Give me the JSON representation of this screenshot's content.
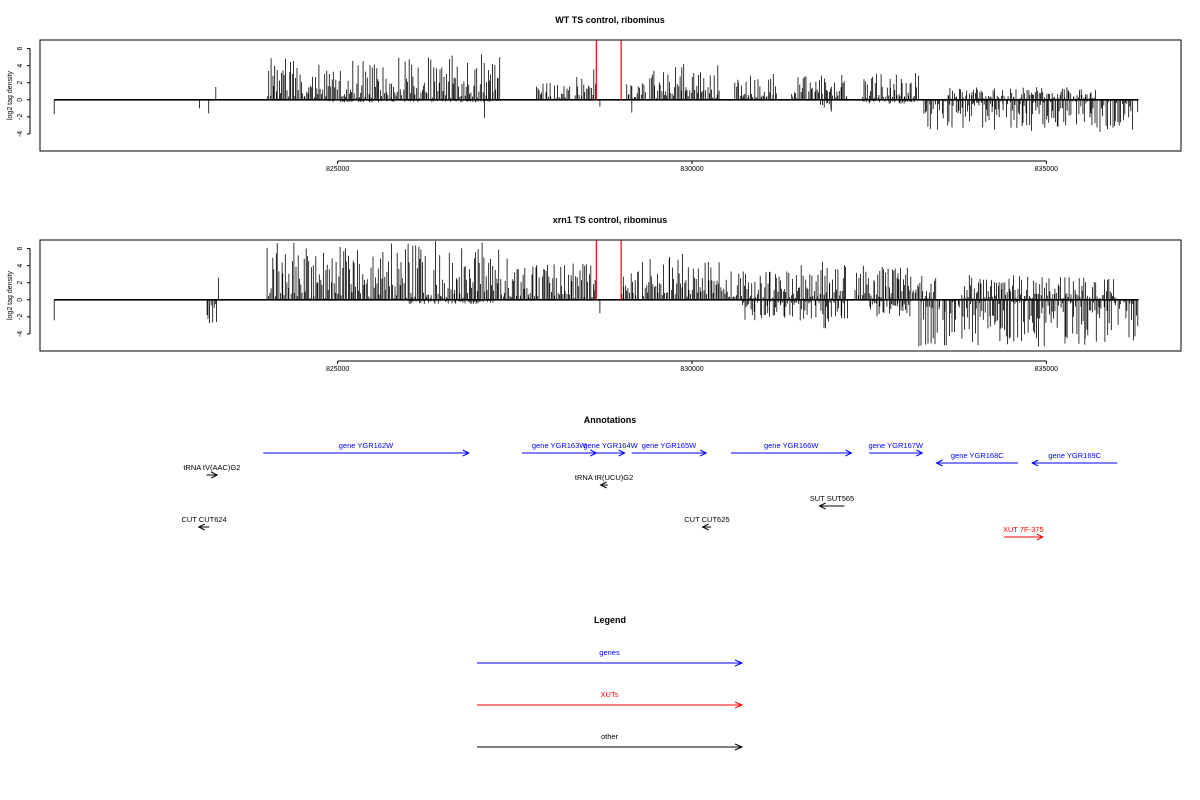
{
  "chart_data": [
    {
      "type": "bar",
      "title": "WT TS control, ribominus",
      "xlabel": "",
      "ylabel": "log2 tag density",
      "xlim": [
        820800,
        836900
      ],
      "ylim": [
        -6,
        7
      ],
      "yticks": [
        -4,
        -2,
        0,
        2,
        4,
        6
      ],
      "xticks": [
        825000,
        830000,
        835000
      ],
      "xtick_labels": [
        "825000",
        "830000",
        "835000"
      ],
      "baseline_x": [
        821000,
        836300
      ],
      "highlight_positions": [
        828650,
        829000
      ],
      "highlight_color": "#ff0000",
      "segments": [
        {
          "x_start": 821000,
          "x_end": 821000,
          "min": -1.7,
          "max": 0
        },
        {
          "x_start": 823050,
          "x_end": 823050,
          "min": -1.0,
          "max": 0
        },
        {
          "x_start": 823180,
          "x_end": 823180,
          "min": -1.6,
          "max": 0
        },
        {
          "x_start": 823280,
          "x_end": 823280,
          "min": 0,
          "max": 1.5
        },
        {
          "x_start": 824000,
          "x_end": 827300,
          "min": 0,
          "max": 5.5
        },
        {
          "x_start": 824800,
          "x_end": 827300,
          "min": -0.3,
          "max": 0
        },
        {
          "x_start": 827070,
          "x_end": 827070,
          "min": -2.1,
          "max": 0
        },
        {
          "x_start": 827800,
          "x_end": 828300,
          "min": 0,
          "max": 2.2
        },
        {
          "x_start": 828350,
          "x_end": 828650,
          "min": 0,
          "max": 4.0
        },
        {
          "x_start": 828700,
          "x_end": 828700,
          "min": -0.8,
          "max": 0
        },
        {
          "x_start": 829050,
          "x_end": 829350,
          "min": 0,
          "max": 2.0
        },
        {
          "x_start": 829150,
          "x_end": 829150,
          "min": -1.5,
          "max": 0
        },
        {
          "x_start": 829400,
          "x_end": 830400,
          "min": 0,
          "max": 4.2
        },
        {
          "x_start": 830600,
          "x_end": 831200,
          "min": 0,
          "max": 3.5
        },
        {
          "x_start": 831400,
          "x_end": 832200,
          "min": 0,
          "max": 3.2
        },
        {
          "x_start": 831800,
          "x_end": 832000,
          "min": -2.0,
          "max": 0
        },
        {
          "x_start": 832400,
          "x_end": 833200,
          "min": 0,
          "max": 3.5
        },
        {
          "x_start": 832400,
          "x_end": 833200,
          "min": -0.5,
          "max": 0
        },
        {
          "x_start": 833250,
          "x_end": 836300,
          "min": -3.8,
          "max": 0
        },
        {
          "x_start": 833600,
          "x_end": 835700,
          "min": 0,
          "max": 1.5
        }
      ]
    },
    {
      "type": "bar",
      "title": "xrn1 TS control, ribominus",
      "xlabel": "",
      "ylabel": "log2 tag density",
      "xlim": [
        820800,
        836900
      ],
      "ylim": [
        -6,
        7
      ],
      "yticks": [
        -4,
        -2,
        0,
        2,
        4,
        6
      ],
      "xticks": [
        825000,
        830000,
        835000
      ],
      "xtick_labels": [
        "825000",
        "830000",
        "835000"
      ],
      "baseline_x": [
        821000,
        836300
      ],
      "highlight_positions": [
        828650,
        829000
      ],
      "highlight_color": "#ff0000",
      "segments": [
        {
          "x_start": 821000,
          "x_end": 821000,
          "min": -2.4,
          "max": 0
        },
        {
          "x_start": 823150,
          "x_end": 823300,
          "min": -2.8,
          "max": 0
        },
        {
          "x_start": 823320,
          "x_end": 823320,
          "min": 0,
          "max": 2.6
        },
        {
          "x_start": 824000,
          "x_end": 827400,
          "min": 0,
          "max": 7.0
        },
        {
          "x_start": 826000,
          "x_end": 827200,
          "min": -0.5,
          "max": 0
        },
        {
          "x_start": 827400,
          "x_end": 828650,
          "min": 0,
          "max": 4.5
        },
        {
          "x_start": 828700,
          "x_end": 828700,
          "min": -1.6,
          "max": 0
        },
        {
          "x_start": 829000,
          "x_end": 830400,
          "min": 0,
          "max": 5.5
        },
        {
          "x_start": 830400,
          "x_end": 831500,
          "min": 0,
          "max": 3.5
        },
        {
          "x_start": 830700,
          "x_end": 831800,
          "min": -2.5,
          "max": 0
        },
        {
          "x_start": 831500,
          "x_end": 832200,
          "min": 0,
          "max": 4.5
        },
        {
          "x_start": 831800,
          "x_end": 832200,
          "min": -3.5,
          "max": 0
        },
        {
          "x_start": 832300,
          "x_end": 833100,
          "min": 0,
          "max": 4.5
        },
        {
          "x_start": 832500,
          "x_end": 833100,
          "min": -2.0,
          "max": 0
        },
        {
          "x_start": 833100,
          "x_end": 833450,
          "min": 0,
          "max": 3.0
        },
        {
          "x_start": 833200,
          "x_end": 836300,
          "min": -5.5,
          "max": 0
        },
        {
          "x_start": 833800,
          "x_end": 836000,
          "min": 0,
          "max": 3.0
        }
      ]
    }
  ],
  "annotations": {
    "title": "Annotations",
    "features": [
      {
        "label": "gene YGR162W",
        "x_start": 823950,
        "x_end": 826850,
        "strand": "+",
        "row": 0,
        "color": "#0000ff"
      },
      {
        "label": "gene YGR163W",
        "x_start": 827600,
        "x_end": 828650,
        "strand": "+",
        "row": 0,
        "color": "#0000ff"
      },
      {
        "label": "gene YGR164W",
        "x_start": 828650,
        "x_end": 829050,
        "strand": "+",
        "row": 0,
        "color": "#0000ff"
      },
      {
        "label": "gene YGR165W",
        "x_start": 829150,
        "x_end": 830200,
        "strand": "+",
        "row": 0,
        "color": "#0000ff"
      },
      {
        "label": "gene YGR166W",
        "x_start": 830550,
        "x_end": 832250,
        "strand": "+",
        "row": 0,
        "color": "#0000ff"
      },
      {
        "label": "gene YGR167W",
        "x_start": 832500,
        "x_end": 833250,
        "strand": "+",
        "row": 0,
        "color": "#0000ff"
      },
      {
        "label": "gene YGR168C",
        "x_start": 833450,
        "x_end": 834600,
        "strand": "-",
        "row": 1,
        "color": "#0000ff"
      },
      {
        "label": "gene YGR169C",
        "x_start": 834800,
        "x_end": 836000,
        "strand": "-",
        "row": 1,
        "color": "#0000ff"
      },
      {
        "label": "tRNA tV(AAC)G2",
        "x_start": 823150,
        "x_end": 823300,
        "strand": "+",
        "row": 2,
        "color": "#000000"
      },
      {
        "label": "tRNA tR(UCU)G2",
        "x_start": 828710,
        "x_end": 828810,
        "strand": "-",
        "row": 3,
        "color": "#000000"
      },
      {
        "label": "SUT SUT565",
        "x_start": 831800,
        "x_end": 832150,
        "strand": "-",
        "row": 4,
        "color": "#000000"
      },
      {
        "label": "CUT CUT624",
        "x_start": 823040,
        "x_end": 823190,
        "strand": "-",
        "row": 5,
        "color": "#000000"
      },
      {
        "label": "CUT CUT625",
        "x_start": 830150,
        "x_end": 830270,
        "strand": "-",
        "row": 5,
        "color": "#000000"
      },
      {
        "label": "XUT 7F-375",
        "x_start": 834400,
        "x_end": 834950,
        "strand": "+",
        "row": 6,
        "color": "#ff0000"
      }
    ]
  },
  "legend": {
    "title": "Legend",
    "items": [
      {
        "label": "genes",
        "color": "#0000ff"
      },
      {
        "label": "XUTs",
        "color": "#ff0000"
      },
      {
        "label": "other",
        "color": "#000000"
      }
    ]
  }
}
